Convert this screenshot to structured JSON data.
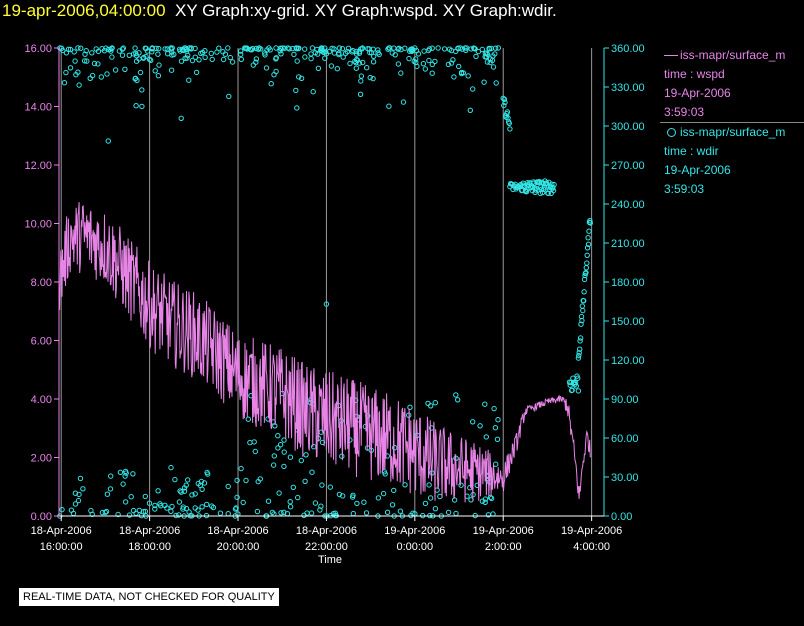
{
  "title": {
    "datetime": "19-apr-2006,04:00:00",
    "graphs": "XY Graph:xy-grid.  XY Graph:wspd.  XY Graph:wdir."
  },
  "legend": {
    "wspd": {
      "source": "iss-mapr/surface_m",
      "var": "time : wspd",
      "date": "19-Apr-2006",
      "time": "3:59:03"
    },
    "wdir": {
      "source": "iss-mapr/surface_m",
      "var": "time : wdir",
      "date": "19-Apr-2006",
      "time": "3:59:03"
    }
  },
  "notice": "REAL-TIME DATA, NOT CHECKED FOR QUALITY",
  "colors": {
    "wspd": "#e884e8",
    "wdir": "#33e6e6",
    "background": "#000000",
    "axis": "#ffffff",
    "grid": "#9a9a9a"
  },
  "chart_data": {
    "type": "line+scatter",
    "xlabel": "Time",
    "xlim": [
      15.5,
      4.25
    ],
    "x_ticks": [
      {
        "value": 16,
        "date": "18-Apr-2006",
        "time": "16:00:00"
      },
      {
        "value": 18,
        "date": "18-Apr-2006",
        "time": "18:00:00"
      },
      {
        "value": 20,
        "date": "18-Apr-2006",
        "time": "20:00:00"
      },
      {
        "value": 22,
        "date": "18-Apr-2006",
        "time": "22:00:00"
      },
      {
        "value": 24,
        "date": "19-Apr-2006",
        "time": "0:00:00"
      },
      {
        "value": 26,
        "date": "19-Apr-2006",
        "time": "2:00:00"
      },
      {
        "value": 28,
        "date": "19-Apr-2006",
        "time": "4:00:00"
      }
    ],
    "x_range_hours": [
      15.95,
      28.28
    ],
    "left_axis": {
      "series": "wspd",
      "ylim": [
        0,
        16
      ],
      "ticks": [
        "0.00",
        "2.00",
        "4.00",
        "6.00",
        "8.00",
        "10.00",
        "12.00",
        "14.00",
        "16.00"
      ]
    },
    "right_axis": {
      "series": "wdir",
      "ylim": [
        0,
        360
      ],
      "ticks": [
        "0.00",
        "30.00",
        "60.00",
        "90.00",
        "120.00",
        "150.00",
        "180.00",
        "210.00",
        "240.00",
        "270.00",
        "300.00",
        "330.00",
        "360.00"
      ]
    },
    "grid": "vertical",
    "series": [
      {
        "name": "wspd",
        "kind": "line",
        "axis": "left",
        "anchors": [
          [
            15.95,
            8.0
          ],
          [
            16.2,
            9.5
          ],
          [
            16.5,
            9.6
          ],
          [
            17.0,
            9.2
          ],
          [
            17.5,
            8.2
          ],
          [
            18.0,
            7.2
          ],
          [
            18.5,
            6.6
          ],
          [
            19.0,
            6.2
          ],
          [
            19.5,
            5.6
          ],
          [
            20.0,
            4.8
          ],
          [
            20.5,
            4.5
          ],
          [
            21.0,
            4.2
          ],
          [
            21.5,
            3.6
          ],
          [
            22.0,
            3.3
          ],
          [
            22.5,
            3.1
          ],
          [
            23.0,
            2.8
          ],
          [
            23.5,
            2.6
          ],
          [
            24.0,
            2.2
          ],
          [
            24.5,
            1.8
          ],
          [
            25.0,
            1.6
          ],
          [
            25.5,
            1.5
          ],
          [
            26.0,
            1.3
          ],
          [
            26.3,
            2.5
          ],
          [
            26.5,
            3.6
          ],
          [
            27.0,
            3.9
          ],
          [
            27.3,
            4.0
          ],
          [
            27.45,
            3.8
          ],
          [
            27.55,
            2.8
          ],
          [
            27.65,
            1.6
          ],
          [
            27.72,
            0.6
          ],
          [
            27.8,
            1.8
          ],
          [
            27.9,
            2.8
          ],
          [
            27.97,
            2.2
          ]
        ],
        "noise": [
          [
            15.95,
            1.2
          ],
          [
            18.0,
            1.5
          ],
          [
            20.0,
            1.5
          ],
          [
            22.0,
            1.7
          ],
          [
            24.0,
            1.6
          ],
          [
            25.5,
            1.0
          ],
          [
            26.0,
            0.5
          ],
          [
            26.3,
            0.35
          ],
          [
            26.6,
            0.12
          ],
          [
            27.3,
            0.12
          ],
          [
            27.5,
            0.4
          ],
          [
            27.97,
            0.3
          ]
        ]
      },
      {
        "name": "wdir",
        "kind": "scatter",
        "axis": "right",
        "clusters": [
          {
            "from": 15.95,
            "to": 26.0,
            "count": 330,
            "high": [
              310,
              360
            ],
            "low_prob": 0.08
          },
          {
            "from": 15.95,
            "to": 20.0,
            "count": 90,
            "bottom": [
              0,
              40
            ]
          },
          {
            "from": 20.0,
            "to": 26.0,
            "count": 150,
            "bottom": [
              0,
              95
            ]
          },
          {
            "from": 26.0,
            "to": 26.15,
            "count": 12,
            "trend": [
              320,
              300
            ]
          },
          {
            "from": 26.15,
            "to": 26.45,
            "count": 18,
            "flat": [
              250,
              256
            ]
          },
          {
            "from": 26.45,
            "to": 27.15,
            "count": 55,
            "flat": [
              248,
              258
            ]
          },
          {
            "from": 27.5,
            "to": 27.7,
            "count": 14,
            "flat": [
              95,
              110
            ]
          },
          {
            "from": 27.7,
            "to": 27.97,
            "count": 28,
            "trend": [
              120,
              230
            ]
          }
        ],
        "outliers": [
          [
            22.0,
            163
          ],
          [
            25.6,
            13
          ]
        ]
      }
    ]
  }
}
